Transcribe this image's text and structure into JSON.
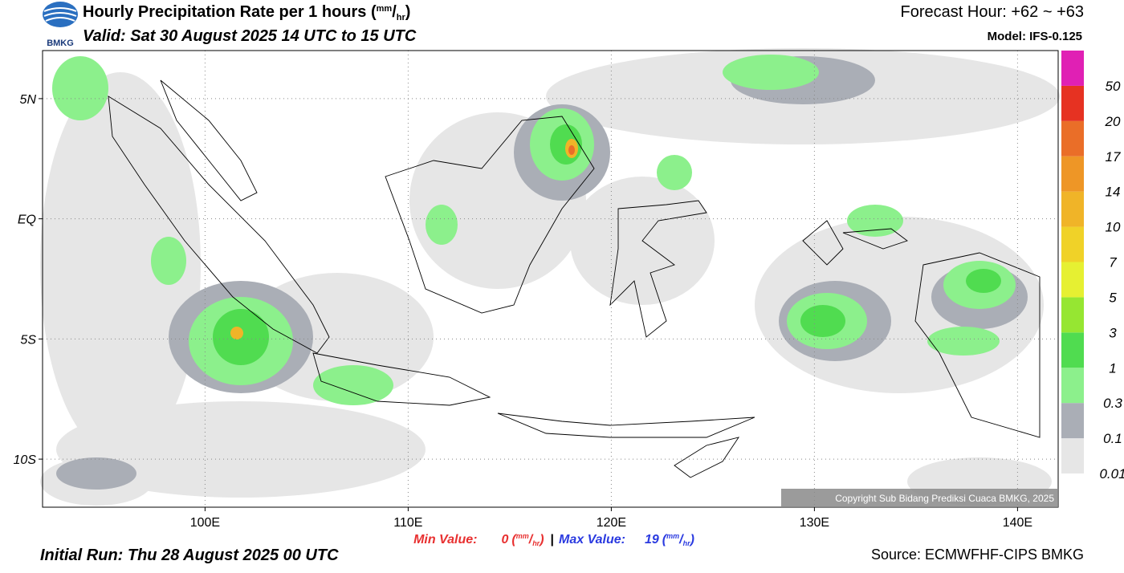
{
  "header": {
    "title": "Hourly Precipitation Rate per 1 hours",
    "unit": {
      "open": "(",
      "num": "mm",
      "sep": "/",
      "den": "hr",
      "close": ")"
    },
    "valid": "Valid: Sat 30 August 2025 14 UTC to 15 UTC",
    "forecast_hour": "Forecast Hour: +62 ~ +63",
    "model": "Model: IFS-0.125",
    "logo": "BMKG"
  },
  "map": {
    "xlim": [
      92,
      142
    ],
    "ylim": [
      -12,
      7
    ],
    "xticks": [
      {
        "value": 100,
        "label": "100E"
      },
      {
        "value": 110,
        "label": "110E"
      },
      {
        "value": 120,
        "label": "120E"
      },
      {
        "value": 130,
        "label": "130E"
      },
      {
        "value": 140,
        "label": "140E"
      }
    ],
    "yticks": [
      {
        "value": 5,
        "label": "5N"
      },
      {
        "value": 0,
        "label": "EQ"
      },
      {
        "value": -5,
        "label": "5S"
      },
      {
        "value": -10,
        "label": "10S"
      }
    ],
    "grid": true,
    "copyright": "Copyright Sub Bidang Prediksi Cuaca BMKG, 2025"
  },
  "colorbar": {
    "levels": [
      0.01,
      0.1,
      0.3,
      1,
      3,
      5,
      7,
      10,
      14,
      17,
      20,
      50
    ],
    "colors": [
      "#e6e6e6",
      "#aaaeb6",
      "#8cf08c",
      "#50dc50",
      "#96e632",
      "#e6f032",
      "#f0d228",
      "#f0b428",
      "#ee9626",
      "#ea6e28",
      "#e63222",
      "#e020b4"
    ]
  },
  "footer": {
    "min_label": "Min Value:",
    "min_value": 0,
    "separator": "|",
    "max_label": "Max Value:",
    "max_value": 19,
    "initial_run": "Initial Run: Thu 28 August 2025 00 UTC",
    "source": "Source: ECMWFHF-CIPS BMKG"
  }
}
